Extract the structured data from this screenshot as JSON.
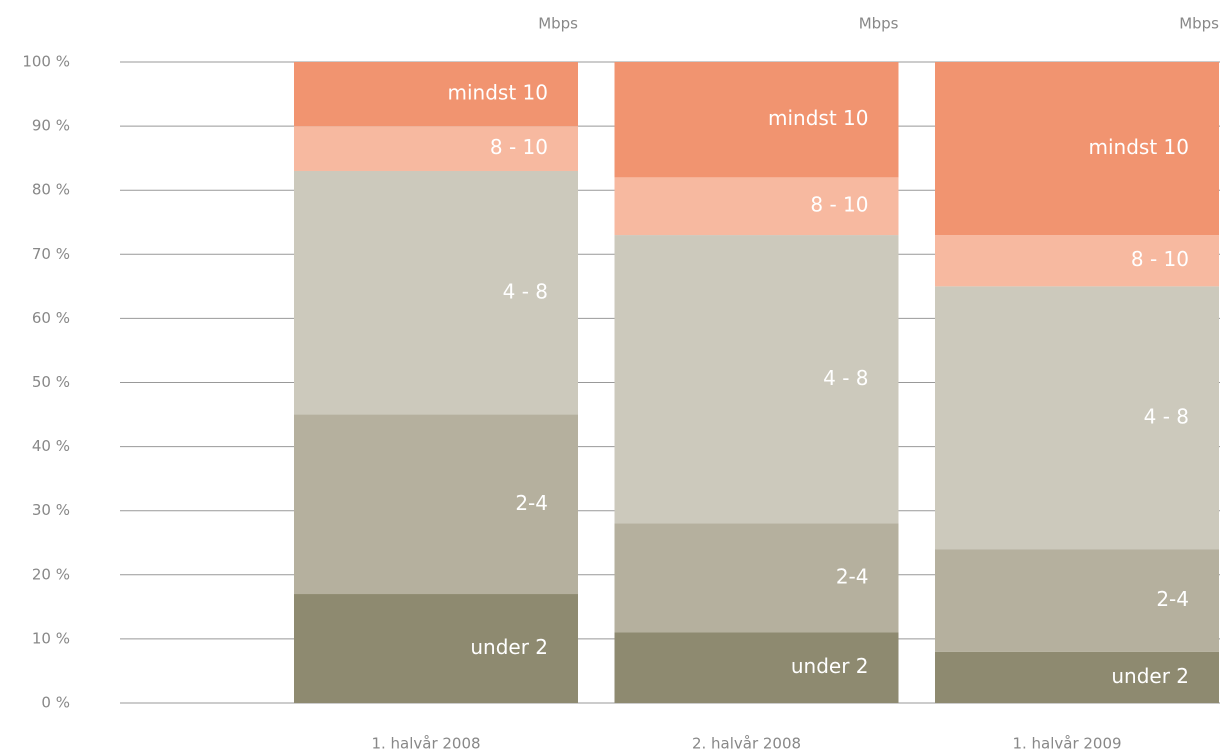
{
  "chart_data": {
    "type": "stacked_bar",
    "unit": "Mbps",
    "categories": [
      "1. halvår 2008",
      "2. halvår 2008",
      "1. halvår 2009"
    ],
    "series": [
      {
        "name": "under 2",
        "color": "#8e8a70",
        "values": [
          17,
          11,
          8
        ]
      },
      {
        "name": "2-4",
        "color": "#b5b09e",
        "values": [
          28,
          17,
          16
        ]
      },
      {
        "name": "4 - 8",
        "color": "#ccc9bc",
        "values": [
          38,
          45,
          41
        ]
      },
      {
        "name": "8 - 10",
        "color": "#f7b9a0",
        "values": [
          7,
          9,
          8
        ]
      },
      {
        "name": "mindst 10",
        "color": "#f19470",
        "values": [
          10,
          18,
          27
        ]
      }
    ],
    "ylim": [
      0,
      100
    ],
    "yticks": [
      {
        "value": 0,
        "label": "0 %"
      },
      {
        "value": 10,
        "label": "10 %"
      },
      {
        "value": 20,
        "label": "20 %"
      },
      {
        "value": 30,
        "label": "30 %"
      },
      {
        "value": 40,
        "label": "40 %"
      },
      {
        "value": 50,
        "label": "50 %"
      },
      {
        "value": 60,
        "label": "60 %"
      },
      {
        "value": 70,
        "label": "70 %"
      },
      {
        "value": 80,
        "label": "80 %"
      },
      {
        "value": 90,
        "label": "90 %"
      },
      {
        "value": 100,
        "label": "100 %"
      }
    ],
    "grid": true
  }
}
